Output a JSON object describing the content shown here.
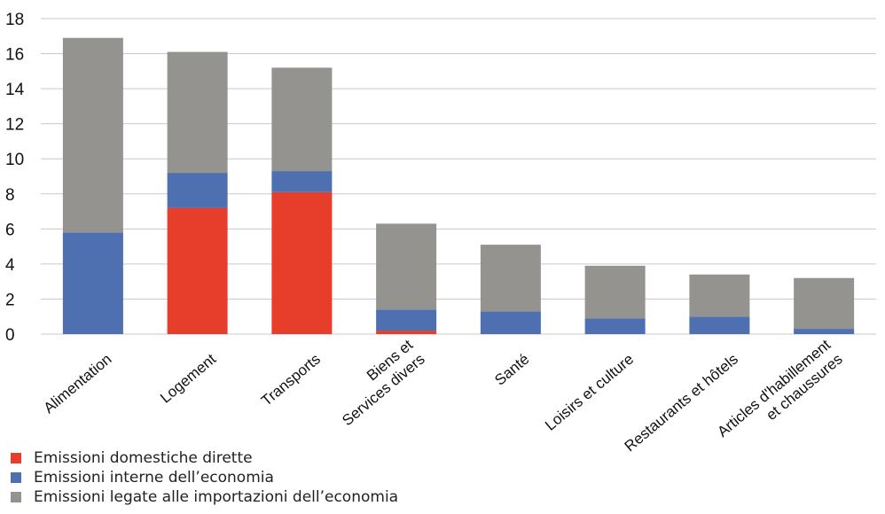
{
  "chart_data": {
    "type": "bar",
    "stacked": true,
    "categories": [
      "Alimentation",
      "Logement",
      "Transports",
      "Biens et\nServices divers",
      "Santé",
      "Loisirs et culture",
      "Restaurants et hôtels",
      "Articles d'habillement\net chaussures"
    ],
    "series": [
      {
        "name": "Emissioni domestiche dirette",
        "color": "#e63e2a",
        "values": [
          0,
          7.2,
          8.1,
          0.2,
          0,
          0,
          0,
          0
        ]
      },
      {
        "name": "Emissioni interne dell’economia",
        "color": "#4e6fb0",
        "values": [
          5.8,
          2.0,
          1.2,
          1.2,
          1.3,
          0.9,
          1.0,
          0.3
        ]
      },
      {
        "name": "Emissioni legate alle importazioni dell’economia",
        "color": "#949390",
        "values": [
          11.1,
          6.9,
          5.9,
          4.9,
          3.8,
          3.0,
          2.4,
          2.9
        ]
      }
    ],
    "ylim": [
      0,
      18
    ],
    "yticks": [
      0,
      2,
      4,
      6,
      8,
      10,
      12,
      14,
      16,
      18
    ],
    "grid": true,
    "legend": "bottom-left"
  }
}
